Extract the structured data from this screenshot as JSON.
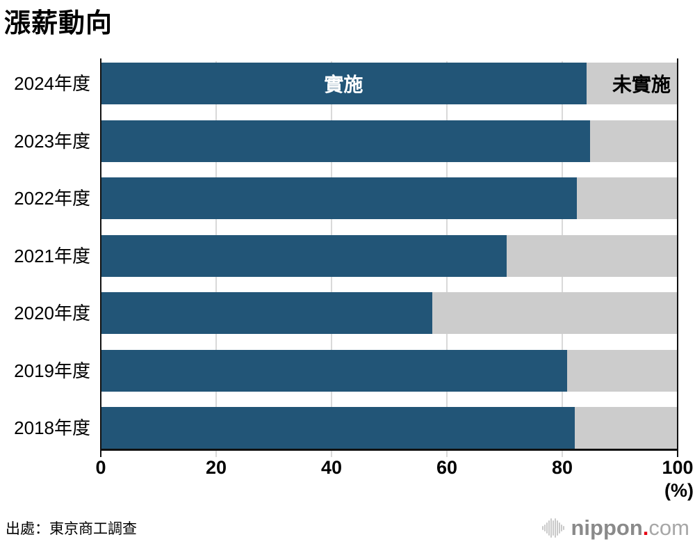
{
  "title": "漲薪動向",
  "chart_data": {
    "type": "bar",
    "orientation": "horizontal",
    "stacked": true,
    "categories": [
      "2024年度",
      "2023年度",
      "2022年度",
      "2021年度",
      "2020年度",
      "2019年度",
      "2018年度"
    ],
    "series": [
      {
        "name": "實施",
        "values": [
          84.2,
          84.8,
          82.5,
          70.4,
          57.5,
          80.9,
          82.2
        ],
        "color": "#225577",
        "label_color": "#ffffff"
      },
      {
        "name": "未實施",
        "values": [
          15.8,
          15.2,
          17.5,
          29.6,
          42.5,
          19.1,
          17.8
        ],
        "color": "#cccccc",
        "label_color": "#000000"
      }
    ],
    "xlim": [
      0,
      100
    ],
    "xticks": [
      "0",
      "20",
      "40",
      "60",
      "80",
      "100"
    ],
    "x_unit_label": "(%)",
    "grid": "vertical-light-gray",
    "legend_position": "labels-inside-first-bar",
    "colors": {
      "axis": "#111111",
      "gridline": "#d9d9d9"
    }
  },
  "footer": {
    "source": "出處：東京商工調查"
  },
  "logo": {
    "icon": "soundwave-icon",
    "word": "nippon",
    "dot": ".",
    "tld": "com",
    "dot_color": "#e60012"
  }
}
